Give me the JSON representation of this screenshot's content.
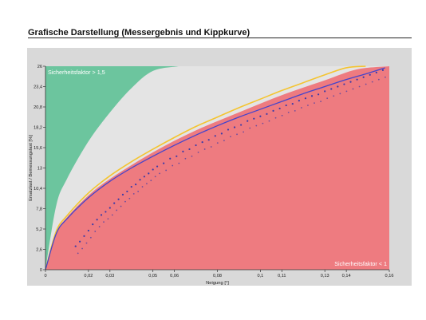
{
  "page": {
    "title": "Grafische Darstellung (Messergebnis und Kippkurve)"
  },
  "colors": {
    "safe_zone": "#6cc59e",
    "neutral_zone": "#e4e4e4",
    "unsafe_zone": "#ee7b80",
    "measurement_curve": "#4444cc",
    "tipping_curve": "#f4c430",
    "measurement_points": "#3a3aa8",
    "frame": "#d9d9d9"
  },
  "chart_data": {
    "type": "area",
    "title": "",
    "xlabel": "Neigung [°]",
    "ylabel": "Ersatzlast / Bemessungslast [%]",
    "xlim": [
      0,
      0.16
    ],
    "ylim": [
      0,
      26
    ],
    "x_ticks": [
      0,
      0.02,
      0.03,
      0.05,
      0.06,
      0.08,
      0.1,
      0.11,
      0.13,
      0.14,
      0.16
    ],
    "x_tick_labels": [
      "0",
      "0,02",
      "0,03",
      "0,05",
      "0,06",
      "0,08",
      "0,1",
      "0,11",
      "0,13",
      "0,14",
      "0,16"
    ],
    "y_ticks": [
      0,
      2.6,
      5.2,
      7.8,
      10.4,
      13,
      15.6,
      18.2,
      20.8,
      23.4,
      26
    ],
    "y_tick_labels": [
      "0",
      "2,6",
      "5,2",
      "7,8",
      "10,4",
      "13",
      "15,6",
      "18,2",
      "20,8",
      "23,4",
      "26"
    ],
    "grid": false,
    "annotations": [
      {
        "text": "Sicherheitsfaktor > 1,5",
        "position": "top-left"
      },
      {
        "text": "Sicherheitsfaktor < 1",
        "position": "bottom-right"
      }
    ],
    "regions": [
      {
        "label": "Sicherheitsfaktor > 1,5",
        "lower_boundary": {
          "x": [
            0,
            0.005,
            0.01,
            0.02,
            0.03,
            0.04,
            0.05,
            0.062
          ],
          "y": [
            0,
            8.2,
            11.6,
            16.4,
            20.1,
            23.2,
            25.4,
            26
          ]
        }
      },
      {
        "label": "Sicherheitsfaktor < 1",
        "upper_boundary": {
          "x": [
            0,
            0.005,
            0.01,
            0.02,
            0.03,
            0.05,
            0.07,
            0.09,
            0.11,
            0.13,
            0.145,
            0.16
          ],
          "y": [
            0,
            4.7,
            6.7,
            9.5,
            11.6,
            15.0,
            17.8,
            20.1,
            22.3,
            24.2,
            25.6,
            26
          ]
        }
      }
    ],
    "series": [
      {
        "x": [
          0,
          0.005,
          0.01,
          0.02,
          0.03,
          0.04,
          0.05,
          0.06,
          0.07,
          0.08,
          0.09,
          0.1,
          0.11,
          0.12,
          0.13,
          0.14,
          0.15,
          0.158
        ],
        "y": [
          0,
          4.6,
          6.5,
          9.2,
          11.3,
          13.0,
          14.5,
          15.9,
          17.2,
          18.4,
          19.5,
          20.5,
          21.5,
          22.5,
          23.4,
          24.3,
          25.1,
          25.8
        ]
      },
      {
        "x": [
          0,
          0.005,
          0.01,
          0.02,
          0.03,
          0.04,
          0.05,
          0.06,
          0.07,
          0.08,
          0.09,
          0.1,
          0.11,
          0.12,
          0.13,
          0.14,
          0.149
        ],
        "y": [
          0,
          4.9,
          6.9,
          9.8,
          12.0,
          13.8,
          15.4,
          16.9,
          18.3,
          19.5,
          20.7,
          21.8,
          22.9,
          23.9,
          24.9,
          25.8,
          26
        ]
      }
    ],
    "scatter_points": {
      "x": [
        0.014,
        0.016,
        0.018,
        0.02,
        0.022,
        0.024,
        0.026,
        0.028,
        0.03,
        0.032,
        0.034,
        0.036,
        0.038,
        0.04,
        0.042,
        0.044,
        0.046,
        0.048,
        0.05,
        0.052,
        0.055,
        0.058,
        0.061,
        0.064,
        0.067,
        0.07,
        0.073,
        0.076,
        0.079,
        0.082,
        0.085,
        0.088,
        0.091,
        0.094,
        0.097,
        0.1,
        0.103,
        0.106,
        0.109,
        0.112,
        0.115,
        0.118,
        0.121,
        0.124,
        0.127,
        0.13,
        0.133,
        0.136,
        0.139,
        0.142,
        0.145,
        0.148,
        0.151,
        0.154,
        0.157
      ],
      "y": [
        3.0,
        3.6,
        4.3,
        5.0,
        5.8,
        6.4,
        7.0,
        7.4,
        7.9,
        8.5,
        9.0,
        9.6,
        10.0,
        10.6,
        10.9,
        11.5,
        11.9,
        12.3,
        12.8,
        13.2,
        13.6,
        14.2,
        14.5,
        15.1,
        15.4,
        15.9,
        16.3,
        16.6,
        17.1,
        17.4,
        17.9,
        18.2,
        18.5,
        19.0,
        19.3,
        19.6,
        19.9,
        20.3,
        20.6,
        21.0,
        21.2,
        21.6,
        21.9,
        22.2,
        22.4,
        22.8,
        23.1,
        23.4,
        23.7,
        24.0,
        24.3,
        24.6,
        24.9,
        25.2,
        25.5
      ]
    }
  }
}
